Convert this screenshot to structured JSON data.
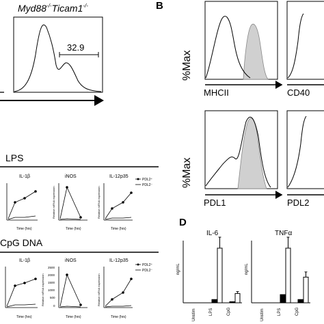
{
  "panel_a": {
    "genotype_base": "Myd88",
    "genotype_sup1": "-/-",
    "genotype_mid": "Ticam1",
    "genotype_sup2": "-/-",
    "gate_percent": "32.9"
  },
  "panel_b": {
    "letter": "B",
    "ylabel": "%Max",
    "xlabels": [
      "MHCII",
      "CD40",
      "PDL1",
      "PDL2"
    ]
  },
  "panel_c": {
    "lps_label": "LPS",
    "cpg_label": "CpG DNA",
    "titles": [
      "IL-1β",
      "iNOS",
      "IL-12p35"
    ],
    "time_label": "Time (hrs)",
    "rel_label": "Relative mRNA expression",
    "legend": [
      "PDL2⁺",
      "PDL2⁻"
    ],
    "cpg_inos_ticks": [
      "2500",
      "2000",
      "1500",
      "1000",
      "500",
      "0"
    ],
    "x_ticks": [
      "0",
      "2",
      "4",
      "6"
    ]
  },
  "panel_d": {
    "letter": "D",
    "ylabel": "ng/mL",
    "charts": [
      "IL-6",
      "TNFα"
    ],
    "categories": [
      "Unstim",
      "LPS",
      "CpG"
    ]
  },
  "chart_data": [
    {
      "type": "bar",
      "title": "IL-6",
      "ylabel": "ng/mL",
      "categories": [
        "Unstim",
        "LPS",
        "CpG"
      ],
      "series": [
        {
          "name": "PDL2⁺",
          "values": [
            0,
            0.06,
            0.02
          ]
        },
        {
          "name": "PDL2⁻",
          "values": [
            0,
            1.0,
            0.17
          ]
        }
      ]
    },
    {
      "type": "bar",
      "title": "TNFα",
      "ylabel": "ng/mL",
      "categories": [
        "Unstim",
        "LPS",
        "CpG"
      ],
      "series": [
        {
          "name": "PDL2⁺",
          "values": [
            0,
            0.15,
            0.06
          ]
        },
        {
          "name": "PDL2⁻",
          "values": [
            0,
            1.0,
            0.47
          ]
        }
      ]
    }
  ]
}
